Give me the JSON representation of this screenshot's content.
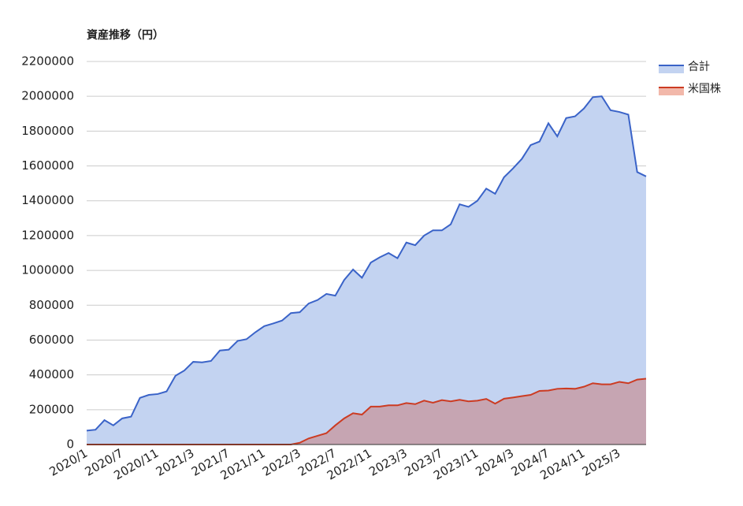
{
  "chart_data": {
    "type": "area",
    "title": "資産推移（円）",
    "categories": [
      "2020/1",
      null,
      null,
      null,
      "2020/7",
      null,
      null,
      null,
      "2020/11",
      null,
      null,
      null,
      "2021/3",
      null,
      null,
      null,
      "2021/7",
      null,
      null,
      null,
      "2021/11",
      null,
      null,
      null,
      "2022/3",
      null,
      null,
      null,
      "2022/7",
      null,
      null,
      null,
      "2022/11",
      null,
      null,
      null,
      "2023/3",
      null,
      null,
      null,
      "2023/7",
      null,
      null,
      null,
      "2023/11",
      null,
      null,
      null,
      "2024/3",
      null,
      null,
      null,
      "2024/7",
      null,
      null,
      null,
      "2024/11",
      null,
      null,
      null,
      "2025/3",
      null,
      null,
      null
    ],
    "series": [
      {
        "name": "合計",
        "color": "#3a63c8",
        "fill": "#c3d3f1",
        "values": [
          80000,
          85000,
          140000,
          110000,
          150000,
          160000,
          268000,
          285000,
          290000,
          305000,
          395000,
          425000,
          475000,
          472000,
          480000,
          540000,
          545000,
          595000,
          605000,
          645000,
          680000,
          695000,
          712000,
          755000,
          760000,
          810000,
          830000,
          865000,
          855000,
          945000,
          1005000,
          958000,
          1045000,
          1075000,
          1100000,
          1070000,
          1160000,
          1145000,
          1200000,
          1230000,
          1230000,
          1265000,
          1380000,
          1365000,
          1400000,
          1470000,
          1440000,
          1535000,
          1585000,
          1640000,
          1720000,
          1740000,
          1845000,
          1770000,
          1875000,
          1885000,
          1930000,
          1995000,
          2000000,
          1920000,
          1910000,
          1895000,
          1565000,
          1540000
        ]
      },
      {
        "name": "米国株",
        "color": "#cc3b22",
        "fill": "#f2b8aa",
        "values": [
          0,
          0,
          0,
          0,
          0,
          0,
          0,
          0,
          0,
          0,
          0,
          0,
          0,
          0,
          0,
          0,
          0,
          0,
          0,
          0,
          0,
          0,
          0,
          0,
          10000,
          35000,
          50000,
          65000,
          110000,
          150000,
          180000,
          172000,
          218000,
          218000,
          225000,
          225000,
          238000,
          232000,
          252000,
          240000,
          255000,
          248000,
          257000,
          248000,
          252000,
          262000,
          235000,
          263000,
          270000,
          278000,
          285000,
          308000,
          310000,
          320000,
          322000,
          320000,
          332000,
          352000,
          346000,
          346000,
          360000,
          352000,
          373000,
          378000
        ]
      }
    ],
    "ylim": [
      0,
      2200000
    ],
    "yticks": [
      0,
      200000,
      400000,
      600000,
      800000,
      1000000,
      1200000,
      1400000,
      1600000,
      1800000,
      2000000,
      2200000
    ],
    "grid": true,
    "legend": "right"
  }
}
